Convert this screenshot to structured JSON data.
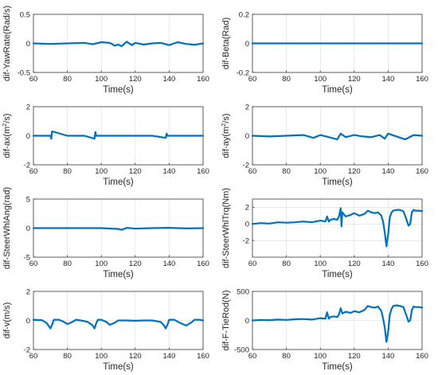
{
  "figure": {
    "series_color": "#0072bd"
  },
  "chart_data": [
    {
      "type": "line",
      "xlabel": "Time(s)",
      "ylabel": "dif-YawRate(Rad/s)",
      "xlim": [
        60,
        160
      ],
      "ylim": [
        -0.5,
        0.5
      ],
      "xticks": [
        60,
        80,
        100,
        120,
        140,
        160
      ],
      "xtick_labels": [
        "60",
        "80",
        "100",
        "120",
        "140",
        "160"
      ],
      "yticks": [
        -0.5,
        0,
        0.5
      ],
      "ytick_labels": [
        "-0.5",
        "0",
        "0.5"
      ],
      "grid": true,
      "x": [
        60,
        70,
        80,
        90,
        95,
        100,
        105,
        108,
        110,
        112,
        115,
        118,
        120,
        125,
        130,
        135,
        140,
        145,
        150,
        155,
        160
      ],
      "y": [
        0,
        -0.01,
        0,
        0.01,
        -0.015,
        0.02,
        0.01,
        -0.04,
        -0.02,
        -0.05,
        0.03,
        -0.03,
        0.01,
        -0.02,
        0,
        0.01,
        -0.03,
        0.02,
        -0.01,
        -0.025,
        0
      ]
    },
    {
      "type": "line",
      "xlabel": "Time(s)",
      "ylabel": "dif-Beta(Rad)",
      "xlim": [
        60,
        160
      ],
      "ylim": [
        -0.2,
        0.2
      ],
      "xticks": [
        60,
        80,
        100,
        120,
        140,
        160
      ],
      "xtick_labels": [
        "60",
        "80",
        "100",
        "120",
        "140",
        "160"
      ],
      "yticks": [
        -0.2,
        0,
        0.2
      ],
      "ytick_labels": [
        "-0.2",
        "0",
        "0.2"
      ],
      "grid": true,
      "x": [
        60,
        80,
        100,
        120,
        140,
        160
      ],
      "y": [
        0,
        0,
        0,
        0,
        0,
        0
      ]
    },
    {
      "type": "line",
      "xlabel": "Time(s)",
      "ylabel": "dif-ax(m²/s)",
      "xlim": [
        60,
        160
      ],
      "ylim": [
        -2,
        2
      ],
      "xticks": [
        60,
        80,
        100,
        120,
        140,
        160
      ],
      "xtick_labels": [
        "60",
        "80",
        "100",
        "120",
        "140",
        "160"
      ],
      "yticks": [
        -2,
        0,
        2
      ],
      "ytick_labels": [
        "-2",
        "0",
        "2"
      ],
      "grid": true,
      "x": [
        60,
        70,
        70.5,
        71,
        80,
        90,
        96,
        96.5,
        97,
        110,
        120,
        130,
        138,
        138.5,
        139,
        150,
        160
      ],
      "y": [
        0,
        0,
        -0.2,
        0.3,
        0,
        0,
        -0.2,
        0.25,
        0,
        0,
        0,
        0,
        -0.15,
        0.15,
        0,
        0,
        0
      ]
    },
    {
      "type": "line",
      "xlabel": "Time(s)",
      "ylabel": "dif-ay(m²/s)",
      "xlim": [
        60,
        160
      ],
      "ylim": [
        -2,
        2
      ],
      "xticks": [
        60,
        80,
        100,
        120,
        140,
        160
      ],
      "xtick_labels": [
        "60",
        "80",
        "100",
        "120",
        "140",
        "160"
      ],
      "yticks": [
        -2,
        0,
        2
      ],
      "ytick_labels": [
        "-2",
        "0",
        "2"
      ],
      "grid": true,
      "x": [
        60,
        70,
        80,
        90,
        96,
        100,
        105,
        110,
        112,
        115,
        120,
        125,
        130,
        135,
        138,
        140,
        145,
        150,
        155,
        160
      ],
      "y": [
        0,
        -0.05,
        0,
        0.05,
        -0.15,
        0.05,
        -0.1,
        -0.25,
        0.15,
        -0.1,
        0.05,
        -0.05,
        -0.1,
        0.05,
        -0.2,
        0.15,
        -0.05,
        -0.25,
        0.05,
        0
      ]
    },
    {
      "type": "line",
      "xlabel": "Time(s)",
      "ylabel": "dif-SteerWhlAng(rad)",
      "xlim": [
        60,
        160
      ],
      "ylim": [
        -5,
        5
      ],
      "xticks": [
        60,
        80,
        100,
        120,
        140,
        160
      ],
      "xtick_labels": [
        "60",
        "80",
        "100",
        "120",
        "140",
        "160"
      ],
      "yticks": [
        -5,
        0,
        5
      ],
      "ytick_labels": [
        "-5",
        "0",
        "5"
      ],
      "grid": true,
      "x": [
        60,
        80,
        100,
        110,
        112,
        115,
        120,
        130,
        140,
        150,
        160
      ],
      "y": [
        0,
        0,
        0,
        -0.15,
        -0.3,
        0.05,
        -0.1,
        0,
        0.05,
        -0.05,
        0
      ]
    },
    {
      "type": "line",
      "xlabel": "Time(s)",
      "ylabel": "dif-SteerWhlTrq(Nm)",
      "xlim": [
        60,
        160
      ],
      "ylim": [
        -4,
        3
      ],
      "xticks": [
        60,
        80,
        100,
        120,
        140,
        160
      ],
      "xtick_labels": [
        "60",
        "80",
        "100",
        "120",
        "140",
        "160"
      ],
      "yticks": [
        -2,
        0,
        2
      ],
      "ytick_labels": [
        "-2",
        "0",
        "2"
      ],
      "grid": true,
      "x": [
        60,
        65,
        70,
        75,
        80,
        85,
        90,
        95,
        100,
        103,
        104,
        105,
        106,
        108,
        110,
        111,
        112,
        112.5,
        113,
        115,
        118,
        120,
        123,
        126,
        128,
        130,
        132,
        134,
        136,
        137,
        138,
        139,
        140,
        141,
        142,
        143,
        145,
        147,
        149,
        150,
        152,
        153,
        154,
        155,
        156,
        158,
        160
      ],
      "y": [
        0,
        0.1,
        0.05,
        0.2,
        0.15,
        0.2,
        0.3,
        0.2,
        0.4,
        0.3,
        0.9,
        0.3,
        0.5,
        0.6,
        0.5,
        0.9,
        1.9,
        -0.3,
        1.4,
        0.9,
        1.1,
        1.3,
        1.0,
        1.2,
        1.6,
        1.4,
        1.3,
        1.4,
        1.0,
        0.3,
        -1.0,
        -2.7,
        -1.3,
        0.8,
        1.4,
        1.6,
        1.7,
        1.7,
        1.5,
        1.0,
        -0.2,
        0,
        1.4,
        1.7,
        1.6,
        1.6,
        1.55
      ]
    },
    {
      "type": "line",
      "xlabel": "Time(s)",
      "ylabel": "dif-v(m/s)",
      "xlim": [
        60,
        160
      ],
      "ylim": [
        -2,
        2
      ],
      "xticks": [
        60,
        80,
        100,
        120,
        140,
        160
      ],
      "xtick_labels": [
        "60",
        "80",
        "100",
        "120",
        "140",
        "160"
      ],
      "yticks": [
        -2,
        0,
        2
      ],
      "ytick_labels": [
        "-2",
        "0",
        "2"
      ],
      "grid": true,
      "x": [
        60,
        65,
        68,
        70,
        71,
        72,
        75,
        78,
        80,
        83,
        85,
        88,
        92,
        95,
        96,
        97,
        98,
        100,
        103,
        105,
        108,
        110,
        115,
        120,
        125,
        130,
        135,
        137,
        138,
        139,
        140,
        143,
        146,
        150,
        153,
        155,
        158,
        160
      ],
      "y": [
        0.05,
        0.02,
        -0.2,
        -0.55,
        -0.3,
        0.05,
        0.05,
        -0.1,
        -0.25,
        -0.1,
        0.05,
        0.0,
        -0.1,
        -0.35,
        -0.55,
        -0.2,
        0.05,
        0.05,
        -0.1,
        -0.3,
        -0.15,
        0.0,
        0.0,
        -0.02,
        0.0,
        0.0,
        -0.1,
        -0.35,
        -0.55,
        -0.3,
        0.05,
        0.05,
        -0.15,
        -0.35,
        -0.15,
        0.05,
        0.05,
        0.0
      ]
    },
    {
      "type": "line",
      "xlabel": "Time(s)",
      "ylabel": "dif-F-TieRod(N)",
      "xlim": [
        60,
        160
      ],
      "ylim": [
        -500,
        500
      ],
      "xticks": [
        60,
        80,
        100,
        120,
        140,
        160
      ],
      "xtick_labels": [
        "60",
        "80",
        "100",
        "120",
        "140",
        "160"
      ],
      "yticks": [
        -500,
        0,
        500
      ],
      "ytick_labels": [
        "-500",
        "0",
        "500"
      ],
      "grid": true,
      "x": [
        60,
        65,
        70,
        75,
        80,
        85,
        90,
        95,
        100,
        103,
        104,
        105,
        106,
        108,
        110,
        111,
        112,
        113,
        115,
        118,
        120,
        123,
        126,
        128,
        130,
        132,
        134,
        136,
        137,
        138,
        139,
        140,
        141,
        142,
        143,
        145,
        147,
        149,
        150,
        152,
        153,
        154,
        155,
        156,
        158,
        160
      ],
      "y": [
        0,
        10,
        5,
        15,
        10,
        20,
        25,
        15,
        40,
        30,
        140,
        30,
        60,
        70,
        60,
        100,
        210,
        120,
        150,
        130,
        160,
        140,
        180,
        250,
        230,
        220,
        240,
        160,
        40,
        -120,
        -370,
        -200,
        100,
        200,
        250,
        260,
        250,
        230,
        150,
        -20,
        0,
        180,
        240,
        230,
        230,
        220
      ]
    }
  ]
}
